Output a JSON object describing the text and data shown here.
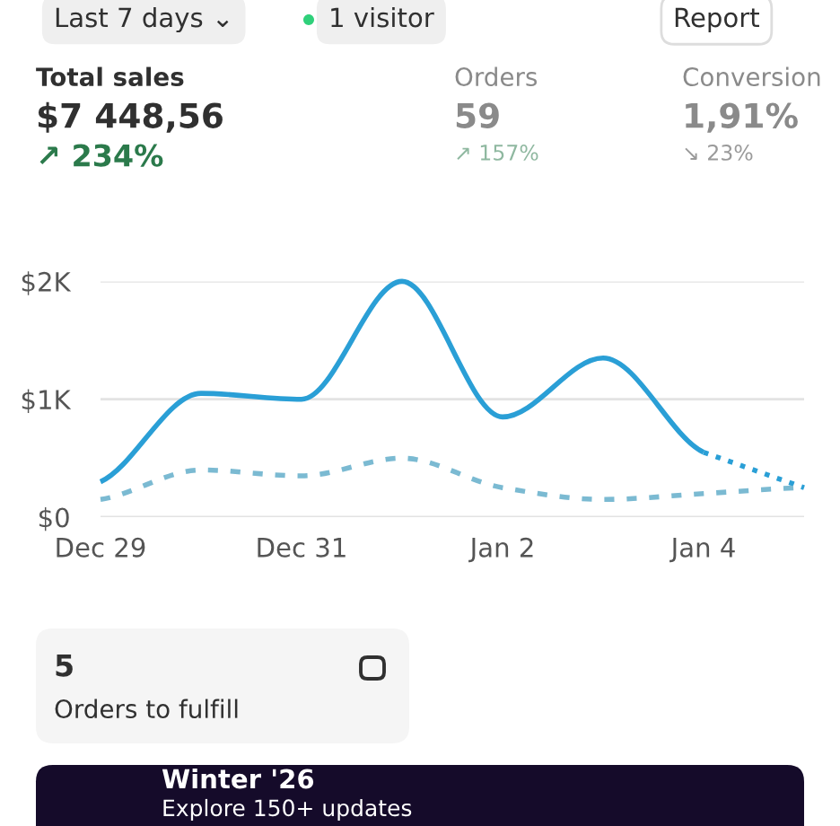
{
  "chart_data": {
    "type": "line",
    "categories": [
      "Dec 29",
      null,
      "Dec 31",
      null,
      "Jan 2",
      null,
      "Jan 4",
      null
    ],
    "series": [
      {
        "color": "#2a9fd6",
        "line_style": "solid",
        "values": [
          300,
          1050,
          1000,
          2000,
          850,
          1350,
          550,
          null
        ]
      },
      {
        "color": "#2a9fd6",
        "line_style": "dotted",
        "values": [
          null,
          null,
          null,
          null,
          null,
          null,
          550,
          250
        ]
      },
      {
        "color": "#7bbad2",
        "line_style": "dashed",
        "values": [
          150,
          400,
          350,
          500,
          250,
          150,
          200,
          250
        ]
      }
    ],
    "ylim": [
      0,
      2000
    ],
    "yticks": [
      {
        "value": 0,
        "label": "$0"
      },
      {
        "value": 1000,
        "label": "$1K"
      },
      {
        "value": 2000,
        "label": "$2K"
      }
    ],
    "grid": "y",
    "annotations": [
      "Last 7 days ⌄",
      "1 visitor",
      "Report",
      "Total sales",
      "$7 448,56",
      "↗ 234%",
      "Orders",
      "59",
      "↗ 157%",
      "Conversion",
      "1,91%",
      "↘ 23%",
      "5",
      "Orders to fulfill",
      "Winter '26",
      "Explore 150+ updates"
    ]
  }
}
